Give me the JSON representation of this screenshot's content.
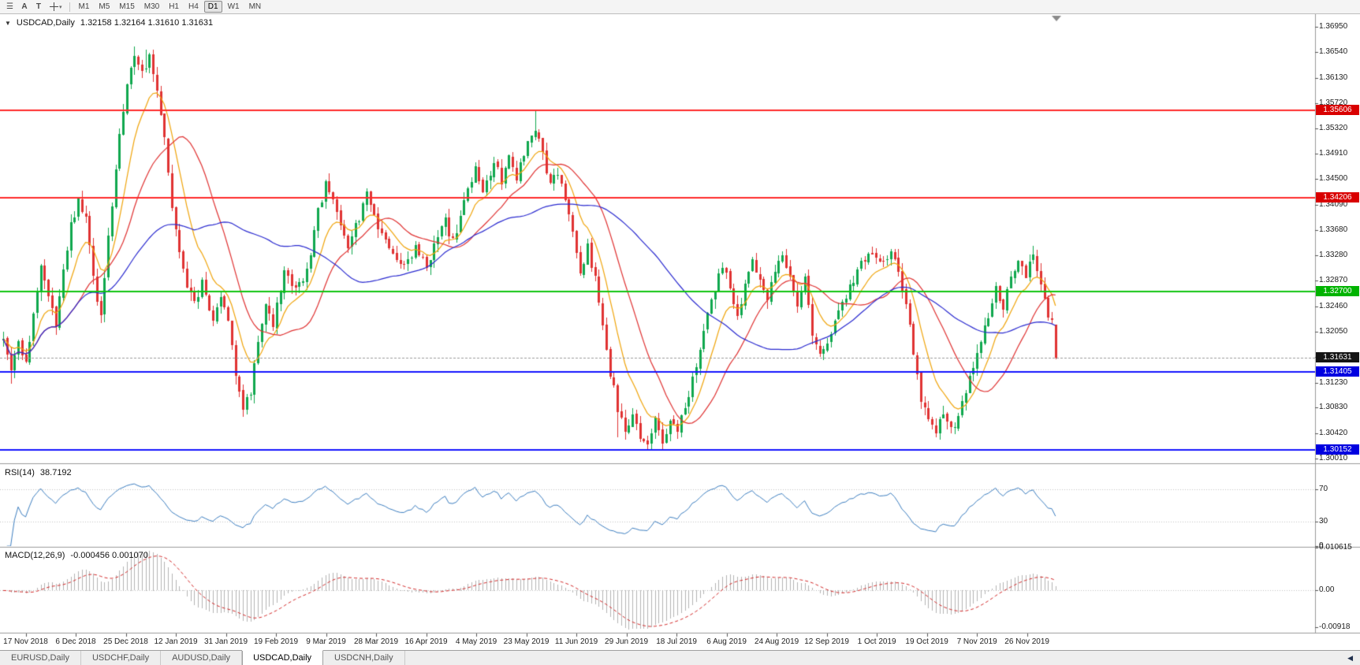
{
  "toolbar": {
    "menu_icon": "burger",
    "annotation_button": "A",
    "text_button": "T",
    "timeframes": [
      "M1",
      "M5",
      "M15",
      "M30",
      "H1",
      "H4",
      "D1",
      "W1",
      "MN"
    ],
    "active_timeframe": "D1"
  },
  "header": {
    "collapse_icon": "▼",
    "symbol": "USDCAD,Daily",
    "ohlc": "1.32158 1.32164 1.31610 1.31631"
  },
  "price_axis": {
    "badges": [
      {
        "text": "1.35606",
        "price": 1.35606,
        "color": "#d90000"
      },
      {
        "text": "1.34206",
        "price": 1.34206,
        "color": "#d90000"
      },
      {
        "text": "1.32700",
        "price": 1.327,
        "color": "#00b300"
      },
      {
        "text": "1.31631",
        "price": 1.31631,
        "color": "#141414"
      },
      {
        "text": "1.31405",
        "price": 1.31405,
        "color": "#0000e0"
      },
      {
        "text": "1.30152",
        "price": 1.30152,
        "color": "#0000e0"
      }
    ]
  },
  "rsi_pane": {
    "name": "RSI(14)",
    "value": "38.7192",
    "levels": [
      70,
      30
    ],
    "line_color": "#3e7fc1",
    "axis_labels": [
      {
        "text": "70",
        "value": 70
      },
      {
        "text": "30",
        "value": 30
      },
      {
        "text": "0",
        "value": 0
      }
    ]
  },
  "macd_pane": {
    "name": "MACD(12,26,9)",
    "values": "-0.000456 0.001070",
    "histogram_color": "#b3b3b3",
    "signal_color": "#d42b2b",
    "axis_labels": [
      {
        "text": "0.010615",
        "value": 0.010615
      },
      {
        "text": "0.00",
        "value": 0
      },
      {
        "text": "-0.00918",
        "value": -0.00918
      }
    ]
  },
  "tab_bar": {
    "tabs": [
      "EURUSD,Daily",
      "USDCHF,Daily",
      "AUDUSD,Daily",
      "USDCAD,Daily",
      "USDCNH,Daily"
    ],
    "active": "USDCAD,Daily",
    "scroll_icon": "◀"
  },
  "chart_data": {
    "type": "candlestick",
    "symbol": "USDCAD",
    "timeframe": "Daily",
    "ylim": [
      1.29937,
      1.3715
    ],
    "bar_count": 282,
    "first_bar_x": 4,
    "bar_spacing_px": 4.75,
    "noise_seed": 9,
    "y_ticks": [
      1.3695,
      1.3654,
      1.3613,
      1.3572,
      1.3532,
      1.3491,
      1.345,
      1.3409,
      1.3368,
      1.3328,
      1.3287,
      1.3246,
      1.3205,
      1.3164,
      1.3123,
      1.3083,
      1.3042,
      1.3001
    ],
    "x_labels": [
      "17 Nov 2018",
      "6 Dec 2018",
      "25 Dec 2018",
      "12 Jan 2019",
      "31 Jan 2019",
      "19 Feb 2019",
      "9 Mar 2019",
      "28 Mar 2019",
      "16 Apr 2019",
      "4 May 2019",
      "23 May 2019",
      "11 Jun 2019",
      "29 Jun 2019",
      "18 Jul 2019",
      "6 Aug 2019",
      "24 Aug 2019",
      "12 Sep 2019",
      "1 Oct 2019",
      "19 Oct 2019",
      "7 Nov 2019",
      "26 Nov 2019"
    ],
    "x_label_anchor_bar": 6,
    "x_label_bar_step": 13.37,
    "close_anchors": [
      [
        0,
        1.3195
      ],
      [
        2,
        1.314
      ],
      [
        4,
        1.3185
      ],
      [
        6,
        1.316
      ],
      [
        8,
        1.323
      ],
      [
        10,
        1.331
      ],
      [
        12,
        1.326
      ],
      [
        14,
        1.3215
      ],
      [
        16,
        1.33
      ],
      [
        18,
        1.3375
      ],
      [
        20,
        1.342
      ],
      [
        22,
        1.339
      ],
      [
        24,
        1.329
      ],
      [
        26,
        1.323
      ],
      [
        27,
        1.33
      ],
      [
        29,
        1.3405
      ],
      [
        31,
        1.352
      ],
      [
        33,
        1.36
      ],
      [
        35,
        1.365
      ],
      [
        37,
        1.362
      ],
      [
        39,
        1.365
      ],
      [
        41,
        1.359
      ],
      [
        43,
        1.351
      ],
      [
        45,
        1.34
      ],
      [
        48,
        1.33
      ],
      [
        51,
        1.325
      ],
      [
        53,
        1.3285
      ],
      [
        56,
        1.322
      ],
      [
        58,
        1.326
      ],
      [
        60,
        1.3215
      ],
      [
        62,
        1.314
      ],
      [
        64,
        1.3085
      ],
      [
        66,
        1.311
      ],
      [
        68,
        1.319
      ],
      [
        70,
        1.3245
      ],
      [
        72,
        1.3215
      ],
      [
        75,
        1.33
      ],
      [
        78,
        1.327
      ],
      [
        80,
        1.329
      ],
      [
        82,
        1.333
      ],
      [
        84,
        1.3395
      ],
      [
        86,
        1.3445
      ],
      [
        88,
        1.342
      ],
      [
        90,
        1.338
      ],
      [
        92,
        1.334
      ],
      [
        95,
        1.339
      ],
      [
        97,
        1.343
      ],
      [
        99,
        1.339
      ],
      [
        101,
        1.336
      ],
      [
        104,
        1.333
      ],
      [
        107,
        1.331
      ],
      [
        110,
        1.334
      ],
      [
        113,
        1.331
      ],
      [
        116,
        1.3355
      ],
      [
        118,
        1.3385
      ],
      [
        120,
        1.335
      ],
      [
        123,
        1.3415
      ],
      [
        126,
        1.3465
      ],
      [
        128,
        1.3435
      ],
      [
        131,
        1.3475
      ],
      [
        133,
        1.3445
      ],
      [
        135,
        1.3485
      ],
      [
        137,
        1.345
      ],
      [
        139,
        1.3495
      ],
      [
        141,
        1.3525
      ],
      [
        142,
        1.353
      ],
      [
        144,
        1.349
      ],
      [
        146,
        1.344
      ],
      [
        148,
        1.346
      ],
      [
        150,
        1.342
      ],
      [
        152,
        1.337
      ],
      [
        154,
        1.33
      ],
      [
        156,
        1.334
      ],
      [
        158,
        1.329
      ],
      [
        160,
        1.321
      ],
      [
        162,
        1.314
      ],
      [
        164,
        1.308
      ],
      [
        166,
        1.3045
      ],
      [
        168,
        1.3075
      ],
      [
        170,
        1.304
      ],
      [
        172,
        1.3025
      ],
      [
        174,
        1.306
      ],
      [
        176,
        1.303
      ],
      [
        178,
        1.3055
      ],
      [
        180,
        1.305
      ],
      [
        182,
        1.308
      ],
      [
        184,
        1.313
      ],
      [
        186,
        1.318
      ],
      [
        188,
        1.323
      ],
      [
        190,
        1.327
      ],
      [
        192,
        1.331
      ],
      [
        194,
        1.328
      ],
      [
        196,
        1.323
      ],
      [
        198,
        1.328
      ],
      [
        200,
        1.332
      ],
      [
        202,
        1.329
      ],
      [
        204,
        1.326
      ],
      [
        206,
        1.33
      ],
      [
        208,
        1.333
      ],
      [
        210,
        1.329
      ],
      [
        212,
        1.325
      ],
      [
        214,
        1.329
      ],
      [
        216,
        1.32
      ],
      [
        218,
        1.3165
      ],
      [
        220,
        1.319
      ],
      [
        223,
        1.324
      ],
      [
        226,
        1.328
      ],
      [
        229,
        1.331
      ],
      [
        232,
        1.333
      ],
      [
        235,
        1.331
      ],
      [
        237,
        1.334
      ],
      [
        239,
        1.33
      ],
      [
        241,
        1.325
      ],
      [
        243,
        1.317
      ],
      [
        245,
        1.31
      ],
      [
        247,
        1.307
      ],
      [
        249,
        1.305
      ],
      [
        251,
        1.3075
      ],
      [
        253,
        1.3045
      ],
      [
        255,
        1.307
      ],
      [
        257,
        1.311
      ],
      [
        259,
        1.315
      ],
      [
        261,
        1.319
      ],
      [
        263,
        1.323
      ],
      [
        265,
        1.327
      ],
      [
        267,
        1.324
      ],
      [
        269,
        1.329
      ],
      [
        271,
        1.332
      ],
      [
        273,
        1.33
      ],
      [
        275,
        1.333
      ],
      [
        277,
        1.329
      ],
      [
        279,
        1.323
      ],
      [
        280,
        1.3218
      ],
      [
        281,
        1.31631
      ]
    ],
    "pinned_extremes": [
      {
        "bar": 2,
        "low": 1.3122
      },
      {
        "bar": 21,
        "high": 1.3432
      },
      {
        "bar": 35,
        "high": 1.3663
      },
      {
        "bar": 38,
        "high": 1.3658
      },
      {
        "bar": 142,
        "high": 1.35605
      },
      {
        "bar": 164,
        "low": 1.3036
      },
      {
        "bar": 170,
        "low": 1.3028
      },
      {
        "bar": 172,
        "low": 1.30165
      },
      {
        "bar": 253,
        "low": 1.3042
      }
    ],
    "last_ohlc": {
      "open": 1.32158,
      "high": 1.32164,
      "low": 1.3161,
      "close": 1.31631
    },
    "price_clamp": [
      1.3016,
      1.3664
    ],
    "body_clamp": [
      1.3019,
      1.3656
    ],
    "candle_up_color": "#0fa84e",
    "candle_down_color": "#e03232",
    "moving_averages": [
      {
        "type": "ema",
        "period": 10,
        "color": "#f0a40a"
      },
      {
        "type": "sma",
        "period": 21,
        "color": "#e03232"
      },
      {
        "type": "sma",
        "period": 52,
        "color": "#2b2bd0"
      }
    ],
    "horizontal_lines": [
      {
        "price": 1.35606,
        "color": "#ff2a2a",
        "width": 2
      },
      {
        "price": 1.34206,
        "color": "#ff2a2a",
        "width": 2
      },
      {
        "price": 1.327,
        "color": "#0fc40f",
        "width": 2
      },
      {
        "price": 1.31405,
        "color": "#1414ff",
        "width": 2
      },
      {
        "price": 1.30152,
        "color": "#1414ff",
        "width": 2
      }
    ],
    "current_price_line": {
      "price": 1.31631,
      "color": "#9b9b9b"
    },
    "indicators": [
      {
        "name": "RSI",
        "period": 14,
        "last_value": 38.7192,
        "levels": [
          70,
          30
        ]
      },
      {
        "name": "MACD",
        "fast": 12,
        "slow": 26,
        "signal": 9,
        "last_main": -0.000456,
        "last_signal": 0.00107
      }
    ]
  }
}
